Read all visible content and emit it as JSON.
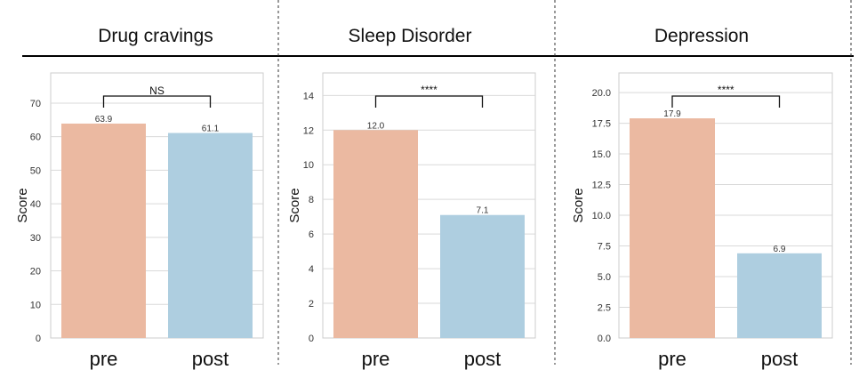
{
  "colors": {
    "pre": "#ebb9a1",
    "post": "#aecee0",
    "grid": "#d9d9d9",
    "frame": "#cccccc"
  },
  "chart_data": [
    {
      "type": "bar",
      "title": "Drug cravings",
      "categories": [
        "pre",
        "post"
      ],
      "values": [
        63.9,
        61.1
      ],
      "value_labels": [
        "63.9",
        "61.1"
      ],
      "ylabel": "Score",
      "ylim": [
        0,
        79
      ],
      "yticks": [
        "0",
        "10",
        "20",
        "30",
        "40",
        "50",
        "60",
        "70"
      ],
      "ytick_values": [
        0,
        10,
        20,
        30,
        40,
        50,
        60,
        70
      ],
      "significance": "NS",
      "grid": true
    },
    {
      "type": "bar",
      "title": "Sleep Disorder",
      "categories": [
        "pre",
        "post"
      ],
      "values": [
        12.0,
        7.1
      ],
      "value_labels": [
        "12.0",
        "7.1"
      ],
      "ylabel": "Score",
      "ylim": [
        0,
        15.3
      ],
      "yticks": [
        "0",
        "2",
        "4",
        "6",
        "8",
        "10",
        "12",
        "14"
      ],
      "ytick_values": [
        0,
        2,
        4,
        6,
        8,
        10,
        12,
        14
      ],
      "significance": "****",
      "grid": true
    },
    {
      "type": "bar",
      "title": "Depression",
      "categories": [
        "pre",
        "post"
      ],
      "values": [
        17.9,
        6.9
      ],
      "value_labels": [
        "17.9",
        "6.9"
      ],
      "ylabel": "Score",
      "ylim": [
        0,
        21.6
      ],
      "yticks": [
        "0.0",
        "2.5",
        "5.0",
        "7.5",
        "10.0",
        "12.5",
        "15.0",
        "17.5",
        "20.0"
      ],
      "ytick_values": [
        0,
        2.5,
        5,
        7.5,
        10,
        12.5,
        15,
        17.5,
        20
      ],
      "significance": "****",
      "grid": true
    }
  ]
}
